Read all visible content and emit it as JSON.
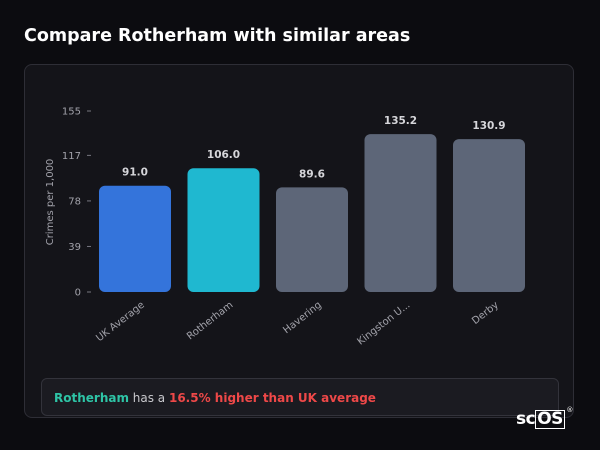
{
  "page": {
    "title": "Compare Rotherham with similar areas"
  },
  "chart_data": {
    "type": "bar",
    "ylabel": "Crimes per 1,000",
    "xlabel": "",
    "yticks": [
      0,
      39,
      78,
      117,
      155
    ],
    "ylim": [
      0,
      155
    ],
    "grid": false,
    "categories": [
      "UK Average",
      "Rotherham",
      "Havering",
      "Kingston U...",
      "Derby"
    ],
    "values": [
      91.0,
      106.0,
      89.6,
      135.2,
      130.9
    ],
    "value_labels": [
      "91.0",
      "106.0",
      "89.6",
      "135.2",
      "130.9"
    ],
    "colors": [
      "#3474db",
      "#1fb8d0",
      "#5d6678",
      "#5d6678",
      "#5d6678"
    ]
  },
  "summary": {
    "area": "Rotherham",
    "text": " has a ",
    "highlight": "16.5% higher than UK average"
  },
  "brand": {
    "prefix": "sc",
    "boxed": "OS",
    "mark": "®"
  }
}
